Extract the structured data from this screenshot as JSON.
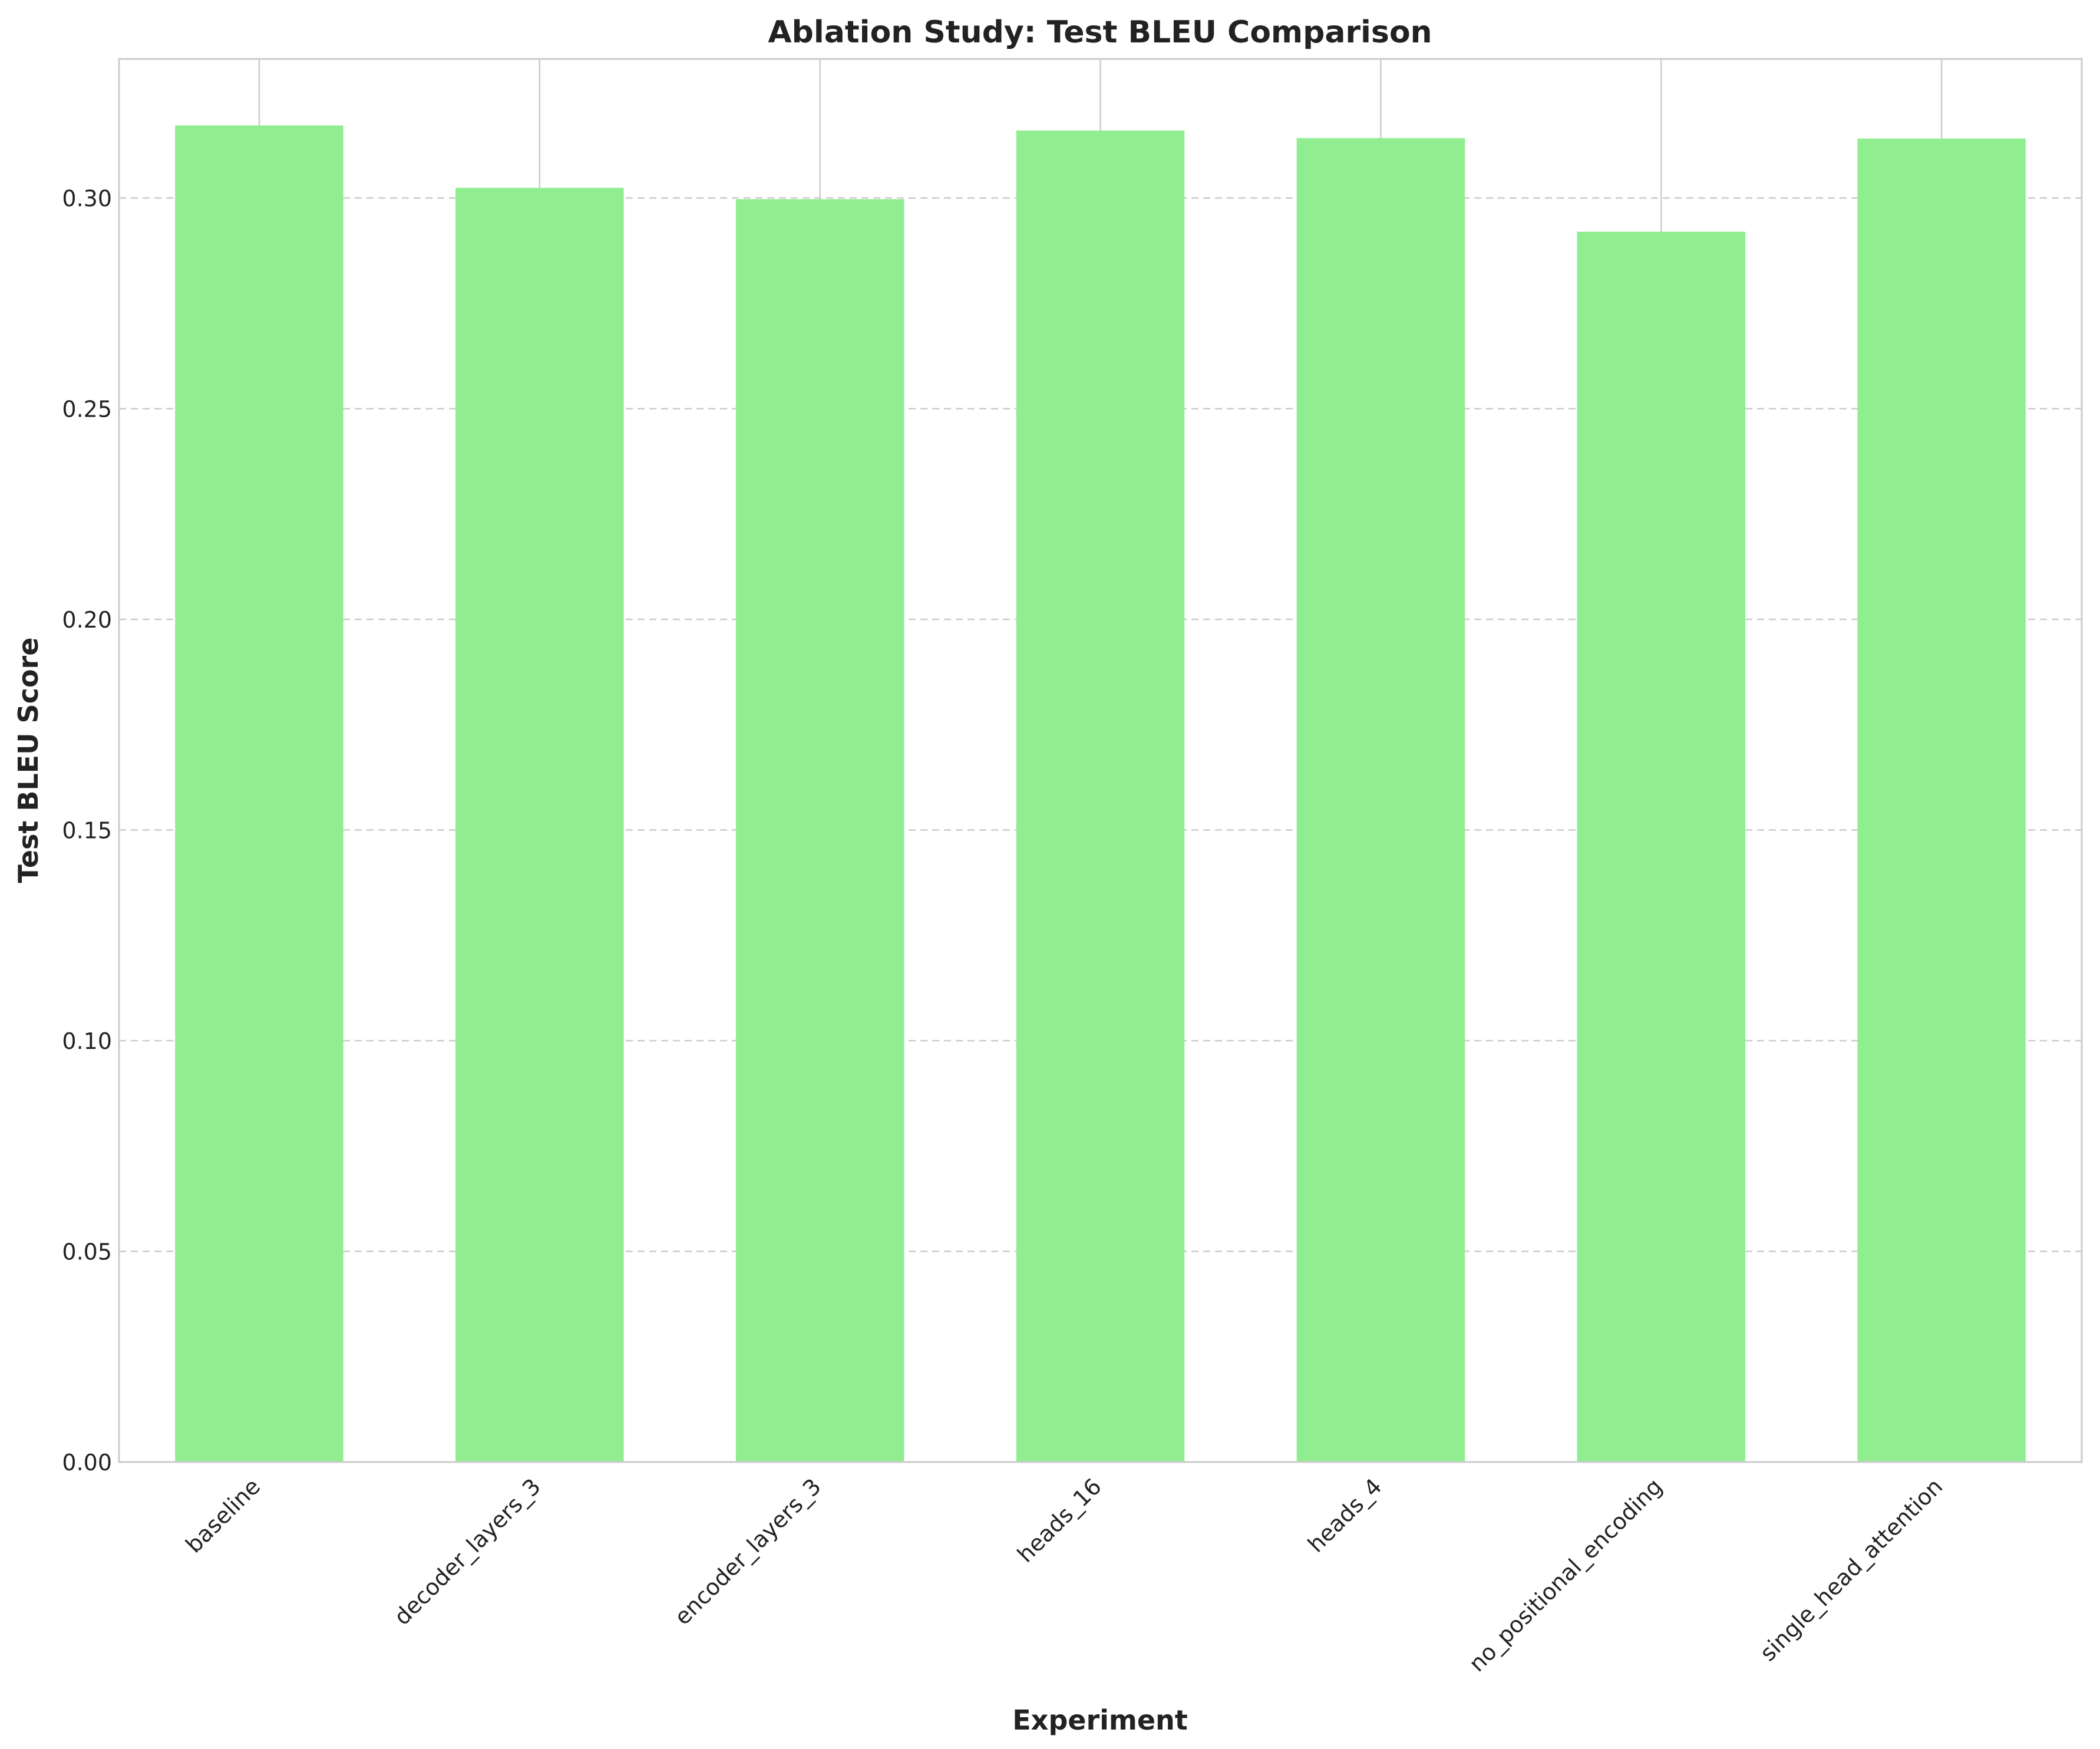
{
  "chart_data": {
    "type": "bar",
    "title": "Ablation Study: Test BLEU Comparison",
    "xlabel": "Experiment",
    "ylabel": "Test BLEU Score",
    "categories": [
      "baseline",
      "decoder_layers_3",
      "encoder_layers_3",
      "heads_16",
      "heads_4",
      "no_positional_encoding",
      "single_head_attention"
    ],
    "values": [
      0.3172,
      0.3024,
      0.2997,
      0.316,
      0.3142,
      0.292,
      0.3141
    ],
    "ylim": [
      0,
      0.333
    ],
    "yticks": [
      0.0,
      0.05,
      0.1,
      0.15,
      0.2,
      0.25,
      0.3
    ],
    "ytick_labels": [
      "0.00",
      "0.05",
      "0.10",
      "0.15",
      "0.20",
      "0.25",
      "0.30"
    ],
    "grid": true,
    "bar_color": "#90ee90"
  }
}
